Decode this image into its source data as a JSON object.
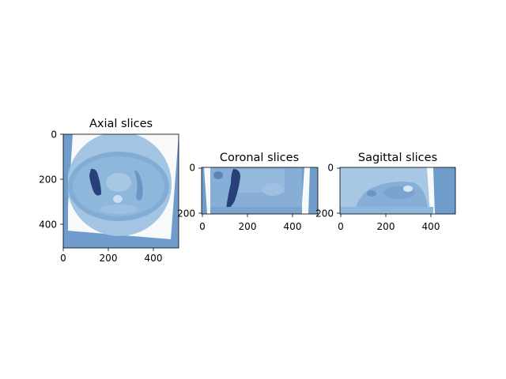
{
  "figure": {
    "panels": [
      {
        "title": "Axial slices",
        "x_ticks": [
          "0",
          "200",
          "400"
        ],
        "y_ticks": [
          "0",
          "200",
          "400"
        ]
      },
      {
        "title": "Coronal slices",
        "x_ticks": [
          "0",
          "200",
          "400"
        ],
        "y_ticks": [
          "0",
          "200"
        ]
      },
      {
        "title": "Sagittal slices",
        "x_ticks": [
          "0",
          "200",
          "400"
        ],
        "y_ticks": [
          "0",
          "200"
        ]
      }
    ]
  },
  "colors": {
    "background_fill": "#6f9ccb",
    "tissue_light": "#a9c8e3",
    "tissue_mid": "#7fa8d2",
    "mask_dark": "#27407a",
    "white_frame": "#f7f9fb"
  }
}
